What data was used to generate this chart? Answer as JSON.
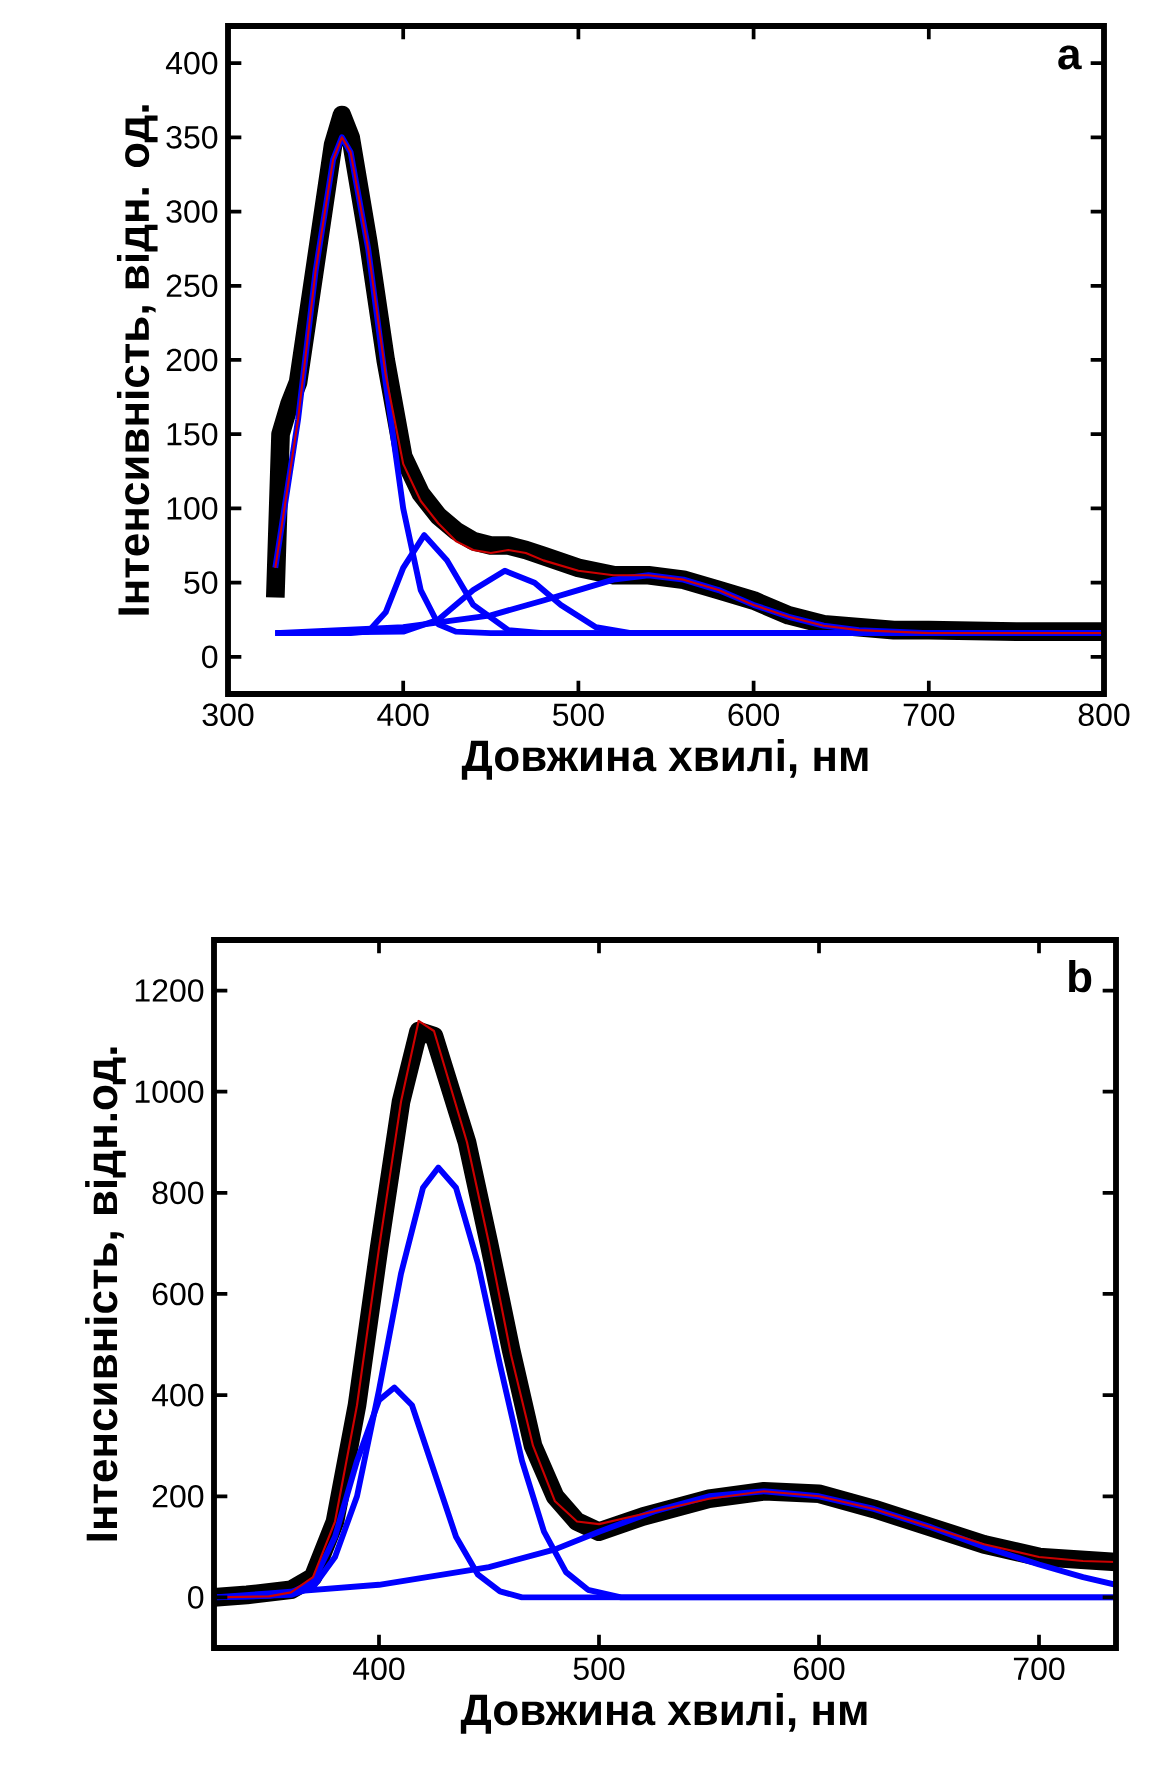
{
  "chart_data": [
    {
      "type": "line",
      "xlabel": "Довжина хвилі, нм",
      "ylabel": "Інтенсивність, відн. од.",
      "annotations": [
        "a"
      ],
      "xlim": [
        300,
        800
      ],
      "ylim": [
        -25,
        425
      ],
      "xticks": [
        300,
        400,
        500,
        600,
        700,
        800
      ],
      "yticks": [
        0,
        50,
        100,
        150,
        200,
        250,
        300,
        350,
        400
      ],
      "series": [
        {
          "color": "#000000",
          "x": [
            327,
            330,
            335,
            340,
            350,
            360,
            365,
            370,
            380,
            390,
            400,
            410,
            420,
            430,
            440,
            450,
            460,
            470,
            480,
            500,
            520,
            540,
            560,
            580,
            600,
            620,
            640,
            660,
            680,
            700,
            750,
            800
          ],
          "values": [
            40,
            150,
            170,
            185,
            265,
            345,
            365,
            350,
            280,
            200,
            135,
            110,
            95,
            85,
            78,
            75,
            75,
            72,
            68,
            60,
            55,
            55,
            52,
            45,
            38,
            28,
            22,
            20,
            18,
            18,
            17,
            17
          ]
        },
        {
          "color": "#0000ff",
          "x": [
            327,
            340,
            350,
            360,
            365,
            370,
            380,
            390,
            400,
            410,
            420,
            430,
            450,
            500,
            800
          ],
          "values": [
            60,
            160,
            260,
            335,
            350,
            340,
            275,
            185,
            100,
            45,
            22,
            17,
            16,
            16,
            16
          ]
        },
        {
          "color": "#0000ff",
          "x": [
            327,
            370,
            380,
            390,
            400,
            412,
            425,
            440,
            460,
            480,
            800
          ],
          "values": [
            16,
            16,
            17,
            30,
            60,
            82,
            65,
            35,
            18,
            16,
            16
          ]
        },
        {
          "color": "#0000ff",
          "x": [
            327,
            400,
            420,
            440,
            458,
            475,
            490,
            510,
            530,
            800
          ],
          "values": [
            16,
            17,
            25,
            45,
            58,
            50,
            35,
            20,
            16,
            16
          ]
        },
        {
          "color": "#0000ff",
          "x": [
            327,
            400,
            450,
            480,
            500,
            520,
            540,
            560,
            580,
            600,
            620,
            640,
            660,
            700,
            800
          ],
          "values": [
            16,
            20,
            28,
            38,
            45,
            52,
            55,
            52,
            45,
            35,
            27,
            21,
            18,
            16,
            16
          ]
        },
        {
          "color": "#cc0000",
          "x": [
            327,
            340,
            350,
            360,
            365,
            370,
            380,
            390,
            400,
            410,
            420,
            430,
            440,
            450,
            460,
            470,
            480,
            500,
            520,
            540,
            560,
            580,
            600,
            620,
            640,
            660,
            700,
            800
          ],
          "values": [
            60,
            160,
            260,
            335,
            350,
            340,
            275,
            190,
            130,
            105,
            90,
            78,
            72,
            70,
            72,
            70,
            65,
            58,
            55,
            55,
            52,
            45,
            35,
            27,
            21,
            18,
            16,
            16
          ]
        }
      ]
    },
    {
      "type": "line",
      "xlabel": "Довжина хвилі, нм",
      "ylabel": "Інтенсивність, відн.од.",
      "annotations": [
        "b"
      ],
      "xlim": [
        325,
        735
      ],
      "ylim": [
        -100,
        1300
      ],
      "xticks": [
        400,
        500,
        600,
        700
      ],
      "yticks": [
        0,
        200,
        400,
        600,
        800,
        1000,
        1200
      ],
      "series": [
        {
          "color": "#000000",
          "x": [
            325,
            340,
            360,
            370,
            380,
            390,
            400,
            410,
            418,
            425,
            440,
            450,
            460,
            470,
            480,
            490,
            500,
            520,
            550,
            575,
            600,
            625,
            650,
            675,
            700,
            735
          ],
          "values": [
            0,
            5,
            15,
            40,
            150,
            380,
            690,
            980,
            1120,
            1110,
            900,
            700,
            490,
            300,
            200,
            150,
            130,
            160,
            195,
            210,
            205,
            175,
            140,
            105,
            80,
            70
          ]
        },
        {
          "color": "#0000ff",
          "x": [
            325,
            350,
            360,
            370,
            380,
            390,
            400,
            407,
            415,
            425,
            435,
            445,
            455,
            465,
            735
          ],
          "values": [
            0,
            3,
            10,
            30,
            120,
            270,
            390,
            415,
            380,
            250,
            120,
            45,
            12,
            0,
            0
          ]
        },
        {
          "color": "#0000ff",
          "x": [
            325,
            360,
            370,
            380,
            390,
            400,
            410,
            420,
            427,
            435,
            445,
            455,
            465,
            475,
            485,
            495,
            510,
            735
          ],
          "values": [
            0,
            5,
            20,
            80,
            200,
            410,
            640,
            810,
            850,
            810,
            660,
            460,
            270,
            130,
            50,
            15,
            0,
            0
          ]
        },
        {
          "color": "#0000ff",
          "x": [
            325,
            350,
            400,
            450,
            480,
            500,
            525,
            550,
            575,
            600,
            625,
            650,
            675,
            700,
            720,
            735
          ],
          "values": [
            0,
            8,
            25,
            60,
            95,
            130,
            170,
            200,
            210,
            200,
            175,
            140,
            100,
            65,
            40,
            25
          ]
        },
        {
          "color": "#cc0000",
          "x": [
            325,
            350,
            360,
            370,
            380,
            390,
            400,
            410,
            418,
            425,
            440,
            450,
            460,
            470,
            480,
            490,
            500,
            520,
            550,
            575,
            600,
            625,
            650,
            675,
            700,
            720,
            735
          ],
          "values": [
            0,
            2,
            10,
            40,
            150,
            380,
            690,
            980,
            1140,
            1120,
            900,
            700,
            480,
            300,
            190,
            150,
            145,
            165,
            195,
            210,
            200,
            175,
            140,
            105,
            80,
            72,
            70
          ]
        }
      ]
    }
  ]
}
